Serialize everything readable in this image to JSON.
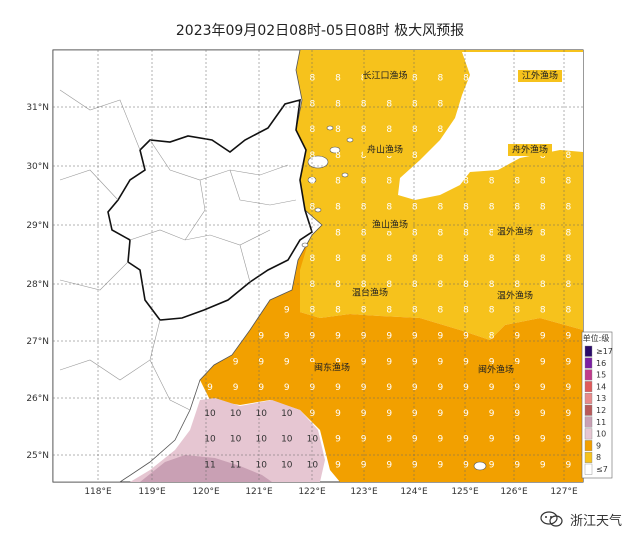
{
  "title": "2023年09月02日08时-05日08时 极大风预报",
  "watermark": "浙江天气",
  "watermark_icon": "wechat-icon",
  "axes": {
    "lon_ticks": [
      "118°E",
      "119°E",
      "120°E",
      "121°E",
      "122°E",
      "123°E",
      "124°E",
      "125°E",
      "126°E",
      "127°E"
    ],
    "lat_ticks": [
      "31°N",
      "30°N",
      "29°N",
      "28°N",
      "27°N",
      "26°N",
      "25°N"
    ]
  },
  "legend": {
    "title": "单位:级",
    "items": [
      {
        "label": "≥17",
        "color": "#2a0b6a"
      },
      {
        "label": "16",
        "color": "#7b1fa2"
      },
      {
        "label": "15",
        "color": "#c03b8c"
      },
      {
        "label": "14",
        "color": "#e05a5a"
      },
      {
        "label": "13",
        "color": "#e88a8a"
      },
      {
        "label": "12",
        "color": "#b85a5a"
      },
      {
        "label": "11",
        "color": "#c9a0b4"
      },
      {
        "label": "10",
        "color": "#e6c6d2"
      },
      {
        "label": "9",
        "color": "#f2a000"
      },
      {
        "label": "8",
        "color": "#f6c21c"
      },
      {
        "label": "≤7",
        "color": "#ffffff"
      }
    ]
  },
  "zones": [
    "长江口渔场",
    "江外渔场",
    "舟山渔场",
    "舟外渔场",
    "渔山渔场",
    "温外渔场",
    "温台渔场",
    "温外渔场",
    "闽东渔场",
    "闽外渔场"
  ],
  "colors": {
    "level8": "#f6c21c",
    "level9": "#f2a000",
    "level10": "#e6c6d2",
    "level11": "#c9a0b4",
    "land": "#ffffff",
    "sea_calm": "#ffffff"
  },
  "grid": {
    "level8_label": "8",
    "level9_label": "9",
    "level10_label": "10",
    "level11_label": "11"
  }
}
